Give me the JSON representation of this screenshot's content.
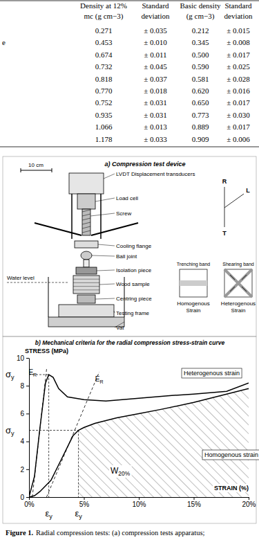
{
  "table": {
    "header": [
      [
        "Density at 12%",
        "mc (g cm−3)"
      ],
      [
        "Standard",
        "deviation"
      ],
      [
        "Basic density",
        "(g cm−3)"
      ],
      [
        "Standard",
        "deviation"
      ]
    ],
    "row_labels": [
      null,
      "e",
      null,
      null,
      null,
      null,
      null,
      null,
      null,
      null
    ],
    "rows": [
      [
        "0.271",
        "± 0.035",
        "0.212",
        "± 0.015"
      ],
      [
        "0.453",
        "± 0.010",
        "0.345",
        "± 0.008"
      ],
      [
        "0.674",
        "± 0.011",
        "0.500",
        "± 0.017"
      ],
      [
        "0.732",
        "± 0.045",
        "0.590",
        "± 0.025"
      ],
      [
        "0.818",
        "± 0.037",
        "0.581",
        "± 0.028"
      ],
      [
        "0.770",
        "± 0.018",
        "0.620",
        "± 0.016"
      ],
      [
        "0.752",
        "± 0.031",
        "0.650",
        "± 0.017"
      ],
      [
        "0.935",
        "± 0.031",
        "0.773",
        "± 0.030"
      ],
      [
        "1.066",
        "± 0.013",
        "0.889",
        "± 0.017"
      ],
      [
        "1.178",
        "± 0.033",
        "0.909",
        "± 0.006"
      ]
    ]
  },
  "figure_a": {
    "title": "a) Compression test device",
    "scale_bar": "10 cm",
    "labels": [
      "LVDT Displacement transducers",
      "Load cell",
      "Screw",
      "Cooling flange",
      "Ball joint",
      "Isolation piece",
      "Wood sample",
      "Centring piece",
      "Testing frame",
      "Vat"
    ],
    "water_level": "Water level",
    "axes": [
      "R",
      "L",
      "T"
    ],
    "bands": [
      {
        "title": "Trenching band",
        "caption": [
          "Homogenous",
          "Strain"
        ]
      },
      {
        "title": "Shearing band",
        "caption": [
          "Heterogenous",
          "Strain"
        ]
      }
    ]
  },
  "chart_data": {
    "type": "line",
    "title": "b) Mechanical criteria for the radial compression stress-strain curve",
    "y_label": "STRESS (MPa)",
    "x_label": "STRAIN (%)",
    "xlim": [
      0,
      20
    ],
    "xticks": [
      {
        "value": 0,
        "label": "0%"
      },
      {
        "value": 5,
        "label": "5%"
      },
      {
        "value": 10,
        "label": "10%"
      },
      {
        "value": 15,
        "label": "15%"
      },
      {
        "value": 20,
        "label": "20%"
      }
    ],
    "ylim": [
      0,
      10
    ],
    "yticks": [
      0,
      2,
      4,
      6,
      8,
      10
    ],
    "series": [
      {
        "name": "Heterogenous strain",
        "color": "#000000",
        "line_style": "solid",
        "x": [
          0,
          0.5,
          1,
          1.5,
          1.8,
          2.2,
          2.7,
          3.5,
          5,
          7,
          10,
          13,
          15,
          18,
          20
        ],
        "values": [
          0,
          1.5,
          5.0,
          8.2,
          8.8,
          8.6,
          7.8,
          7.2,
          7.0,
          6.9,
          7.1,
          7.3,
          7.4,
          7.6,
          8.2
        ]
      },
      {
        "name": "Homogenous strain",
        "color": "#000000",
        "line_style": "solid",
        "x": [
          0,
          0.5,
          1,
          2,
          3,
          4,
          4.5,
          5,
          6,
          8,
          10,
          12,
          15,
          18,
          20
        ],
        "values": [
          0,
          0.1,
          0.4,
          1.2,
          2.8,
          4.4,
          4.8,
          5.0,
          5.3,
          5.7,
          6.0,
          6.3,
          6.8,
          7.4,
          7.8
        ]
      },
      {
        "name": "ER",
        "color": "#000000",
        "line_style": "dashed",
        "x": [
          0.3,
          1.6
        ],
        "values": [
          0,
          9.2
        ]
      },
      {
        "name": "ER",
        "color": "#000000",
        "line_style": "dashed",
        "x": [
          1.6,
          6.4
        ],
        "values": [
          0,
          9.0
        ]
      }
    ],
    "yield_points": [
      {
        "strain": 1.8,
        "stress": 8.8,
        "stress_label": "σy",
        "strain_label": "εy"
      },
      {
        "strain": 4.5,
        "stress": 4.8,
        "stress_label": "σy",
        "strain_label": "εy"
      }
    ],
    "area": {
      "label": "W20%",
      "strain_range": [
        4.5,
        20
      ]
    }
  },
  "caption": {
    "label": "Figure 1.",
    "text": "Radial compression tests: (a) compression tests apparatus;"
  }
}
